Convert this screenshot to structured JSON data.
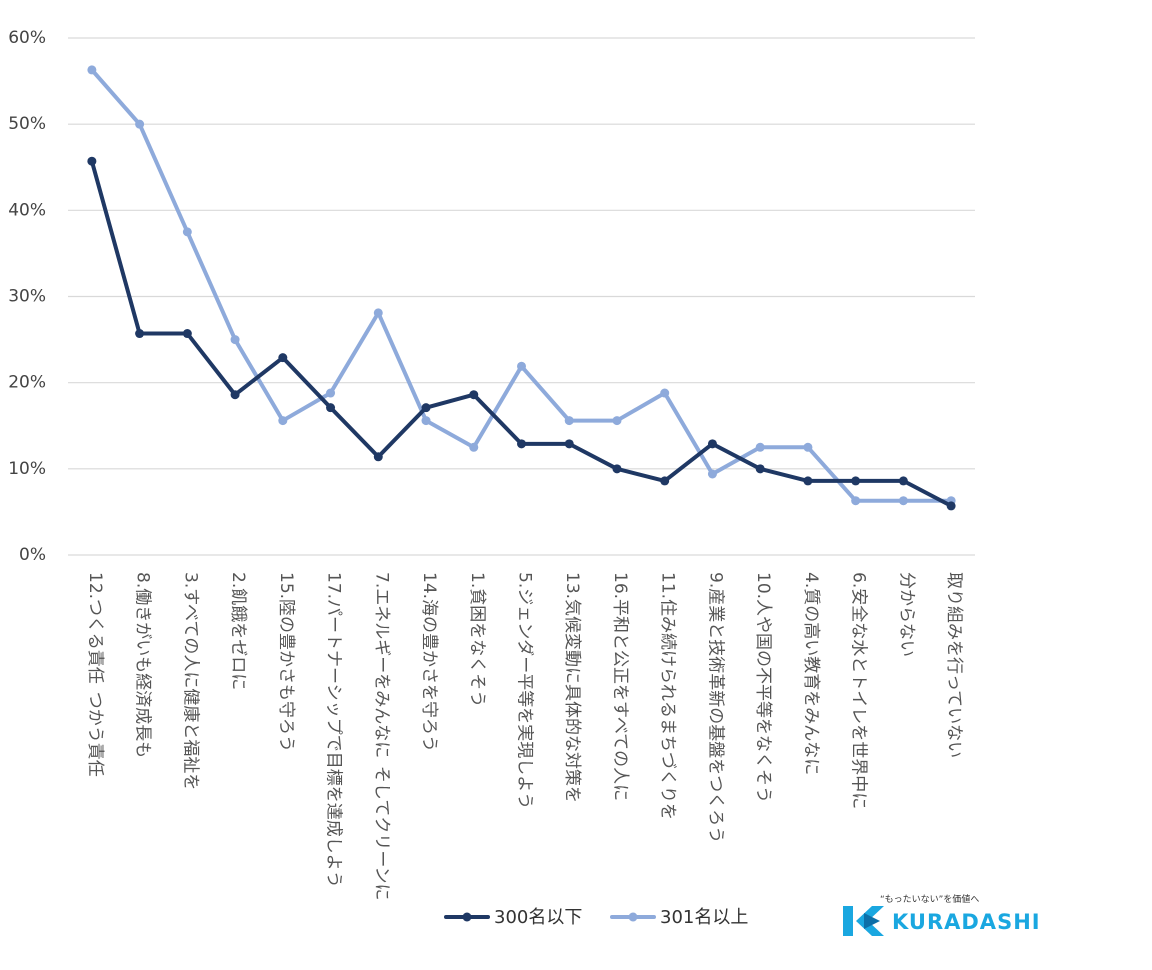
{
  "chart_data": {
    "type": "line",
    "title": "",
    "xlabel": "",
    "ylabel": "",
    "ylim": [
      0,
      60
    ],
    "y_ticks": [
      {
        "value": 0,
        "label": "0%"
      },
      {
        "value": 10,
        "label": "10%"
      },
      {
        "value": 20,
        "label": "20%"
      },
      {
        "value": 30,
        "label": "30%"
      },
      {
        "value": 40,
        "label": "40%"
      },
      {
        "value": 50,
        "label": "50%"
      },
      {
        "value": 60,
        "label": "60%"
      }
    ],
    "grid": true,
    "legend_position": "bottom",
    "categories": [
      [
        "12.つくる責任",
        "つかう責任"
      ],
      [
        "8.働きがいも経済成長も"
      ],
      [
        "3.すべての人に健康と福祉を"
      ],
      [
        "2.飢餓をゼロに"
      ],
      [
        "15.陸の豊かさも守ろう"
      ],
      [
        "17.パートナーシップで目標を達成しよう"
      ],
      [
        "7.エネルギーをみんなに",
        "そしてクリーンに"
      ],
      [
        "14.海の豊かさを守ろう"
      ],
      [
        "1.貧困をなくそう"
      ],
      [
        "5.ジェンダー平等を実現しよう"
      ],
      [
        "13.気候変動に具体的な対策を"
      ],
      [
        "16.平和と公正をすべての人に"
      ],
      [
        "11.住み続けられるまちづくりを"
      ],
      [
        "9.産業と技術革新の基盤をつくろう"
      ],
      [
        "10.人や国の不平等をなくそう"
      ],
      [
        "4.質の高い教育をみんなに"
      ],
      [
        "6.安全な水とトイレを世界中に"
      ],
      [
        "分からない"
      ],
      [
        "取り組みを行っていない"
      ]
    ],
    "series": [
      {
        "name": "300名以下",
        "color": "#1f3864",
        "values": [
          45.7,
          25.7,
          25.7,
          18.6,
          22.9,
          17.1,
          11.4,
          17.1,
          18.6,
          12.9,
          12.9,
          10.0,
          8.6,
          12.9,
          10.0,
          8.6,
          8.6,
          8.6,
          5.7
        ]
      },
      {
        "name": "301名以上",
        "color": "#8eaadb",
        "values": [
          56.3,
          50.0,
          37.5,
          25.0,
          15.6,
          18.8,
          28.1,
          15.6,
          12.5,
          21.9,
          15.6,
          15.6,
          18.8,
          9.4,
          12.5,
          12.5,
          6.3,
          6.3,
          6.3
        ]
      }
    ]
  },
  "logo": {
    "tagline": "“もったいない”を価値へ",
    "name": "KURADASHI",
    "color": "#1aa7e0"
  }
}
